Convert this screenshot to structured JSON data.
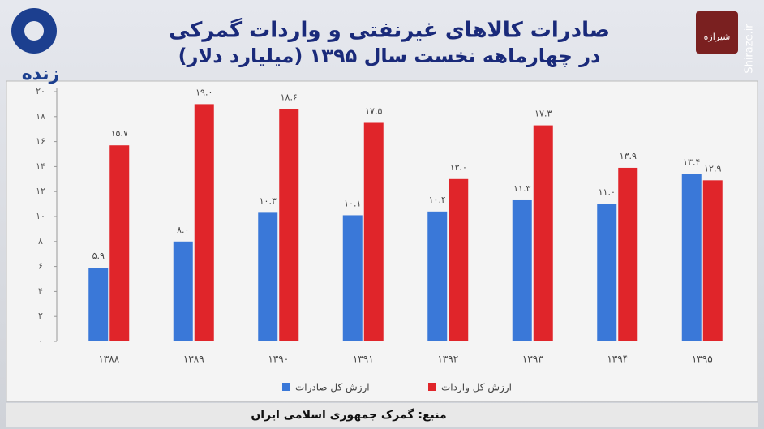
{
  "logo": "زنده",
  "watermark": {
    "site": "Shiraze.ir",
    "name": "شیرازه"
  },
  "chart_data": {
    "type": "bar",
    "title": "صادرات کالاهای غیرنفتی و واردات گمرکی",
    "subtitle": "در چهارماهه نخست سال ۱۳۹۵ (میلیارد دلار)",
    "source": "منبع: گمرک جمهوری اسلامی ایران",
    "categories": [
      "۱۳۸۸",
      "۱۳۸۹",
      "۱۳۹۰",
      "۱۳۹۱",
      "۱۳۹۲",
      "۱۳۹۳",
      "۱۳۹۴",
      "۱۳۹۵"
    ],
    "series": [
      {
        "name": "ارزش کل صادرات",
        "color": "#3a78d8",
        "values": [
          5.9,
          8.0,
          10.3,
          10.1,
          10.4,
          11.3,
          11.0,
          13.4
        ],
        "value_labels": [
          "۵.۹",
          "۸.۰",
          "۱۰.۳",
          "۱۰.۱",
          "۱۰.۴",
          "۱۱.۳",
          "۱۱.۰",
          "۱۳.۴"
        ]
      },
      {
        "name": "ارزش کل واردات",
        "color": "#e0252a",
        "values": [
          15.7,
          19.0,
          18.6,
          17.5,
          13.0,
          17.3,
          13.9,
          12.9
        ],
        "value_labels": [
          "۱۵.۷",
          "۱۹.۰",
          "۱۸.۶",
          "۱۷.۵",
          "۱۳.۰",
          "۱۷.۳",
          "۱۳.۹",
          "۱۲.۹"
        ]
      }
    ],
    "ylim": [
      0,
      20
    ],
    "yticks": [
      {
        "value": 0,
        "label": "۰"
      },
      {
        "value": 2,
        "label": "۲"
      },
      {
        "value": 4,
        "label": "۴"
      },
      {
        "value": 6,
        "label": "۶"
      },
      {
        "value": 8,
        "label": "۸"
      },
      {
        "value": 10,
        "label": "۱۰"
      },
      {
        "value": 12,
        "label": "۱۲"
      },
      {
        "value": 14,
        "label": "۱۴"
      },
      {
        "value": 16,
        "label": "۱۶"
      },
      {
        "value": 18,
        "label": "۱۸"
      },
      {
        "value": 20,
        "label": "۲۰"
      }
    ],
    "grid": false,
    "legend": "bottom"
  }
}
